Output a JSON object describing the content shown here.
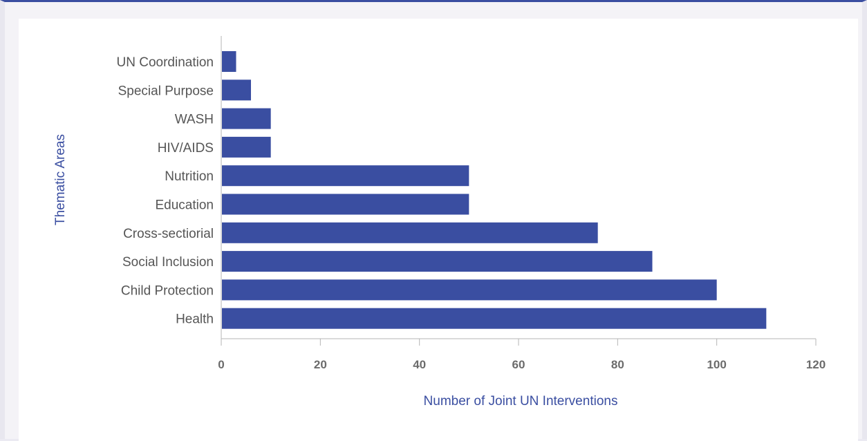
{
  "chart_data": {
    "type": "bar",
    "orientation": "horizontal",
    "categories": [
      "UN Coordination",
      "Special Purpose",
      "WASH",
      "HIV/AIDS",
      "Nutrition",
      "Education",
      "Cross-sectiorial",
      "Social Inclusion",
      "Child Protection",
      "Health"
    ],
    "values": [
      3,
      6,
      10,
      10,
      50,
      50,
      76,
      87,
      100,
      110
    ],
    "xlabel": "Number of Joint UN Interventions",
    "ylabel": "Thematic Areas",
    "xlim": [
      0,
      120
    ],
    "xticks": [
      0,
      20,
      40,
      60,
      80,
      100,
      120
    ],
    "grid": false,
    "bar_color": "#3a4ea1",
    "axis_label_color": "#3a4ea1"
  }
}
